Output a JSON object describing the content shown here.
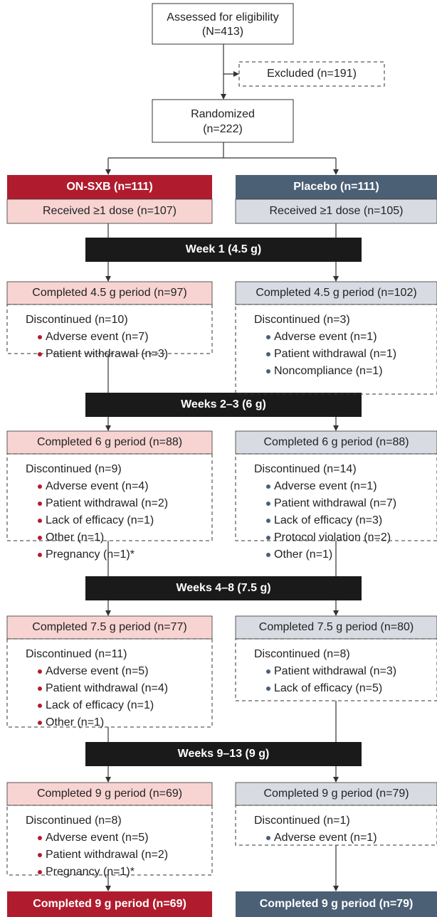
{
  "assessed": [
    "Assessed for eligibility",
    "(N=413)"
  ],
  "excluded": "Excluded (n=191)",
  "randomized": [
    "Randomized",
    "(n=222)"
  ],
  "phases": [
    "Week 1 (4.5 g)",
    "Weeks 2–3 (6 g)",
    "Weeks 4–8 (7.5 g)",
    "Weeks 9–13 (9 g)"
  ],
  "arms": [
    {
      "name": "ON-SXB (n=111)",
      "received": "Received ≥1 dose (n=107)",
      "periods": [
        {
          "completed": "Completed 4.5 g period (n=97)",
          "discontinued": "Discontinued (n=10)",
          "reasons": [
            "Adverse event (n=7)",
            "Patient withdrawal (n=3)"
          ]
        },
        {
          "completed": "Completed 6 g period (n=88)",
          "discontinued": "Discontinued (n=9)",
          "reasons": [
            "Adverse event (n=4)",
            "Patient withdrawal (n=2)",
            "Lack of efficacy (n=1)",
            "Other (n=1)",
            "Pregnancy (n=1)*"
          ]
        },
        {
          "completed": "Completed 7.5 g period (n=77)",
          "discontinued": "Discontinued (n=11)",
          "reasons": [
            "Adverse event (n=5)",
            "Patient withdrawal (n=4)",
            "Lack of efficacy (n=1)",
            "Other (n=1)"
          ]
        },
        {
          "completed": "Completed 9 g period (n=69)",
          "discontinued": "Discontinued (n=8)",
          "reasons": [
            "Adverse event (n=5)",
            "Patient withdrawal (n=2)",
            "Pregnancy (n=1)*"
          ]
        }
      ],
      "final": "Completed 9 g period (n=69)"
    },
    {
      "name": "Placebo (n=111)",
      "received": "Received ≥1 dose (n=105)",
      "periods": [
        {
          "completed": "Completed 4.5 g period (n=102)",
          "discontinued": "Discontinued (n=3)",
          "reasons": [
            "Adverse event (n=1)",
            "Patient withdrawal (n=1)",
            "Noncompliance (n=1)"
          ]
        },
        {
          "completed": "Completed 6 g period (n=88)",
          "discontinued": "Discontinued (n=14)",
          "reasons": [
            "Adverse event (n=1)",
            "Patient withdrawal (n=7)",
            "Lack of efficacy (n=3)",
            "Protocol violation (n=2)",
            "Other (n=1)"
          ]
        },
        {
          "completed": "Completed 7.5 g period (n=80)",
          "discontinued": "Discontinued (n=8)",
          "reasons": [
            "Patient withdrawal (n=3)",
            "Lack of efficacy (n=5)"
          ]
        },
        {
          "completed": "Completed 9 g period (n=79)",
          "discontinued": "Discontinued (n=1)",
          "reasons": [
            "Adverse event (n=1)"
          ]
        }
      ],
      "final": "Completed 9 g period (n=79)"
    }
  ]
}
